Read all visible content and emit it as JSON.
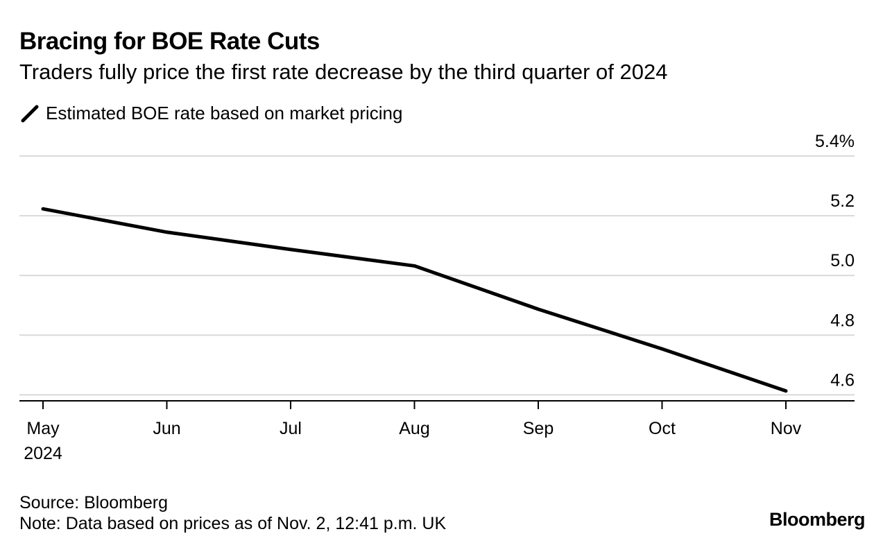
{
  "chart_data": {
    "type": "line",
    "title": "Bracing for BOE Rate Cuts",
    "subtitle": "Traders fully price the first rate decrease by the third quarter of 2024",
    "series": [
      {
        "name": "Estimated BOE rate based on market pricing",
        "color": "#000000",
        "x": [
          "May",
          "Jun",
          "Jul",
          "Aug",
          "Sep",
          "Oct",
          "Nov"
        ],
        "values": [
          5.223,
          5.145,
          5.087,
          5.032,
          4.887,
          4.754,
          4.613
        ]
      }
    ],
    "categories": [
      "May",
      "Jun",
      "Jul",
      "Aug",
      "Sep",
      "Oct",
      "Nov"
    ],
    "first_category_year": "2024",
    "y_ticks": [
      "5.4%",
      "5.2",
      "5.0",
      "4.8",
      "4.6"
    ],
    "y_tick_values": [
      5.4,
      5.2,
      5.0,
      4.8,
      4.6
    ],
    "ylim": [
      4.58,
      5.4
    ],
    "xlabel": "",
    "ylabel": "",
    "y_axis_position": "right",
    "grid": true,
    "gridline_color": "#d9d9d9",
    "axis_color": "#000000",
    "legend_position": "top-left"
  },
  "footer": {
    "source": "Source: Bloomberg",
    "note": "Note: Data based on prices as of Nov. 2, 12:41 p.m. UK",
    "brand": "Bloomberg"
  }
}
